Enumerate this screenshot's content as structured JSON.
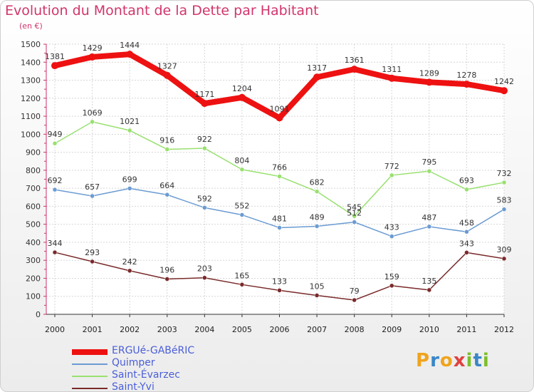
{
  "title": "Evolution du Montant de la Dette par Habitant",
  "subtitle": "(en €)",
  "logo": {
    "letters": [
      "P",
      "r",
      "o",
      "x",
      "i",
      "t",
      "i"
    ],
    "colors": [
      "#f0a41c",
      "#3a86c8",
      "#f0a41c",
      "#e04040",
      "#7bbf2a",
      "#3a86c8",
      "#7bbf2a"
    ]
  },
  "chart_data": {
    "type": "line",
    "title": "Evolution du Montant de la Dette par Habitant",
    "ylabel": "(en €)",
    "xlabel": "",
    "x": [
      "2000",
      "2001",
      "2002",
      "2003",
      "2004",
      "2005",
      "2006",
      "2007",
      "2008",
      "2009",
      "2010",
      "2011",
      "2012"
    ],
    "ylim": [
      0,
      1500
    ],
    "yticks": [
      "0",
      "100",
      "200",
      "300",
      "400",
      "500",
      "600",
      "700",
      "800",
      "900",
      "1000",
      "1100",
      "1200",
      "1300",
      "1400",
      "1500"
    ],
    "grid": true,
    "legend": "bottom-left",
    "series": [
      {
        "name": "ERGUé-GABéRIC",
        "color": "#ee1111",
        "values": [
          1381,
          1429,
          1444,
          1327,
          1171,
          1204,
          1091,
          1317,
          1361,
          1311,
          1289,
          1278,
          1242
        ],
        "labels": [
          "1381",
          "1429",
          "1444",
          "1327",
          "1171",
          "1204",
          "1091",
          "1317",
          "1361",
          "1311",
          "1289",
          "1278",
          "1242"
        ]
      },
      {
        "name": "Quimper",
        "color": "#6b9bd2",
        "values": [
          692,
          657,
          699,
          664,
          592,
          552,
          481,
          489,
          512,
          433,
          487,
          458,
          583
        ],
        "labels": [
          "692",
          "657",
          "699",
          "664",
          "592",
          "552",
          "481",
          "489",
          "512",
          "433",
          "487",
          "458",
          "583"
        ]
      },
      {
        "name": "Saint-Évarzec",
        "color": "#99e070",
        "values": [
          949,
          1069,
          1021,
          916,
          922,
          804,
          766,
          682,
          545,
          772,
          795,
          693,
          732
        ],
        "labels": [
          "949",
          "1069",
          "1021",
          "916",
          "922",
          "804",
          "766",
          "682",
          "545",
          "772",
          "795",
          "693",
          "732"
        ]
      },
      {
        "name": "Saint-Yvi",
        "color": "#7a2a2a",
        "values": [
          344,
          293,
          242,
          196,
          203,
          165,
          133,
          105,
          79,
          159,
          135,
          343,
          309
        ],
        "labels": [
          "344",
          "293",
          "242",
          "196",
          "203",
          "165",
          "133",
          "105",
          "79",
          "159",
          "135",
          "343",
          "309"
        ]
      }
    ]
  }
}
